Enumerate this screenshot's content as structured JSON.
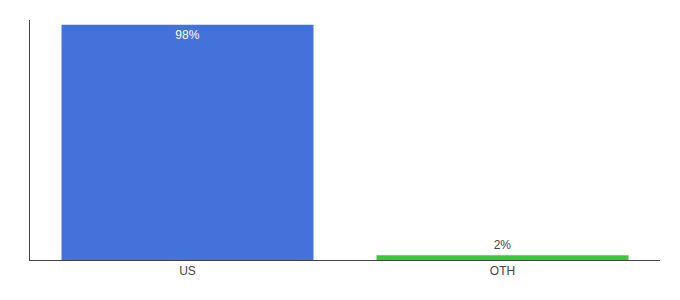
{
  "chart_data": {
    "type": "bar",
    "categories": [
      "US",
      "OTH"
    ],
    "values": [
      98,
      2
    ],
    "value_labels": [
      "98%",
      "2%"
    ],
    "data_labels": true,
    "colors": [
      "#4472db",
      "#33cc33"
    ],
    "ylim": [
      0,
      100
    ],
    "tick_labels": "x",
    "grid": false
  }
}
